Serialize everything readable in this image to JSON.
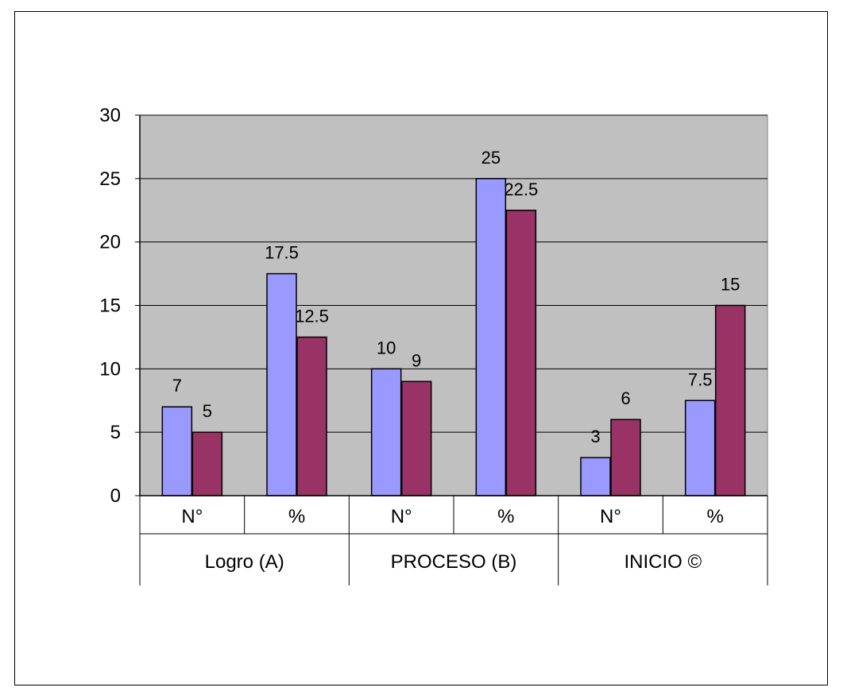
{
  "chart_data": {
    "type": "bar",
    "title": "",
    "xlabel": "",
    "ylabel": "",
    "ylim": [
      0,
      30
    ],
    "yticks": [
      0,
      5,
      10,
      15,
      20,
      25,
      30
    ],
    "grid": true,
    "legend": "none",
    "categories": [
      "N°",
      "%",
      "N°",
      "%",
      "N°",
      "%"
    ],
    "groups": [
      {
        "label": "Logro  (A)",
        "span": 2
      },
      {
        "label": "PROCESO (B)",
        "span": 2
      },
      {
        "label": "INICIO ©",
        "span": 2
      }
    ],
    "series": [
      {
        "values": [
          7,
          17.5,
          10,
          25,
          3,
          7.5
        ],
        "color": "#9999ff"
      },
      {
        "values": [
          5,
          12.5,
          9,
          22.5,
          6,
          15
        ],
        "color": "#993366"
      }
    ],
    "data_labels": [
      [
        "7",
        "17.5",
        "10",
        "25",
        "3",
        "7.5"
      ],
      [
        "5",
        "12.5",
        "9",
        "22.5",
        "6",
        "15"
      ]
    ],
    "plot_background": "#c0c0c0",
    "grid_color": "#000000"
  }
}
